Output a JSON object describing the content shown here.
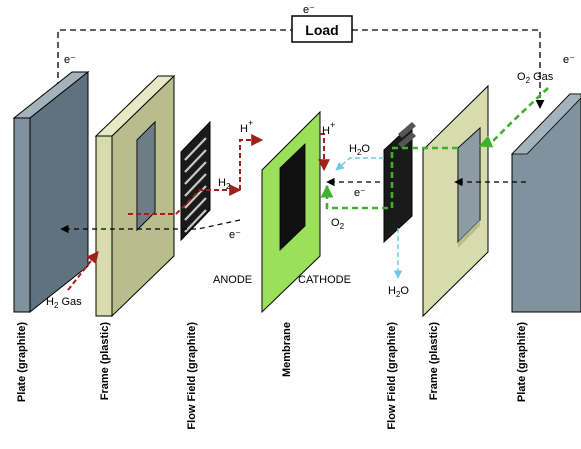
{
  "circuit": {
    "load_label": "Load",
    "electron_left": "e⁻",
    "electron_top": "e⁻",
    "electron_right": "e⁻"
  },
  "anode_side": {
    "h2_gas": {
      "main": "H",
      "sub": "2",
      "tail": " Gas"
    },
    "h2": {
      "main": "H",
      "sub": "2"
    },
    "h_plus": {
      "main": "H",
      "sup": "+"
    },
    "electron": "e⁻",
    "anode_label": "ANODE"
  },
  "cathode_side": {
    "h_plus": {
      "main": "H",
      "sup": "+"
    },
    "h2o_top": {
      "main": "H",
      "sub": "2",
      "tail": "O"
    },
    "electron": "e⁻",
    "o2": {
      "main": "O",
      "sub": "2"
    },
    "h2o_bottom": {
      "main": "H",
      "sub": "2",
      "tail": "O"
    },
    "o2_gas": {
      "main": "O",
      "sub": "2",
      "tail": " Gas"
    },
    "cathode_label": "CATHODE"
  },
  "component_labels": [
    "Plate (graphite)",
    "Frame (plastic)",
    "Flow Field (graphite)",
    "Membrane",
    "Flow Field (graphite)",
    "Frame (plastic)",
    "Plate (graphite)"
  ],
  "colors": {
    "plate": "#7f929e",
    "frame": "#d6dcae",
    "membrane": "#9ae05a",
    "flowfield": "#1a1a1a",
    "hydrogen_arrow": "#a0201a",
    "oxygen_arrow": "#3db22a",
    "water_arrow": "#6ec9e0"
  }
}
